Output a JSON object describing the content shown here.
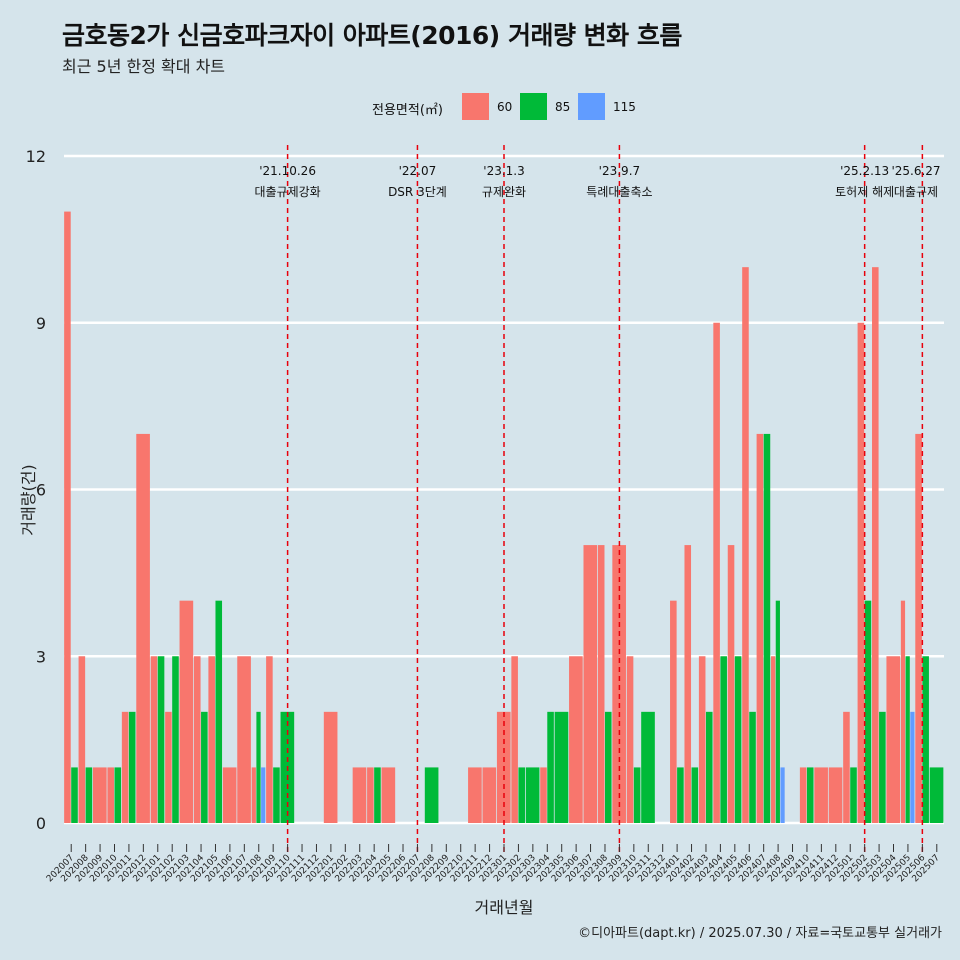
{
  "title": "금호동2가 신금호파크자이 아파트(2016) 거래량 변화 흐름",
  "subtitle": "최근 5년 한정 확대 차트",
  "caption": "©디아파트(dapt.kr) / 2025.07.30 / 자료=국토교통부 실거래가",
  "colors": {
    "60": "#F8766D",
    "85": "#00BA38",
    "115": "#619CFF",
    "background": "#d5e4eb",
    "vline": "#e8000b"
  },
  "chart_data": {
    "type": "bar",
    "xlabel": "거래년월",
    "ylabel": "거래량(건)",
    "ylim": [
      0,
      12
    ],
    "yticks": [
      0,
      3,
      6,
      9,
      12
    ],
    "legend": {
      "title": "전용면적(㎡)",
      "position": "top",
      "entries": [
        "60",
        "85",
        "115"
      ]
    },
    "categories": [
      "202007",
      "202008",
      "202009",
      "202010",
      "202011",
      "202012",
      "202101",
      "202102",
      "202103",
      "202104",
      "202105",
      "202106",
      "202107",
      "202108",
      "202109",
      "202110",
      "202111",
      "202112",
      "202201",
      "202202",
      "202203",
      "202204",
      "202205",
      "202206",
      "202207",
      "202208",
      "202209",
      "202210",
      "202211",
      "202212",
      "202301",
      "202302",
      "202303",
      "202304",
      "202305",
      "202306",
      "202307",
      "202308",
      "202309",
      "202310",
      "202311",
      "202312",
      "202401",
      "202402",
      "202403",
      "202404",
      "202405",
      "202406",
      "202407",
      "202408",
      "202409",
      "202410",
      "202411",
      "202412",
      "202501",
      "202502",
      "202503",
      "202504",
      "202505",
      "202506",
      "202507"
    ],
    "series": [
      {
        "name": "60",
        "values": [
          11,
          3,
          1,
          1,
          2,
          7,
          3,
          2,
          4,
          3,
          3,
          1,
          3,
          1,
          3,
          0,
          0,
          0,
          2,
          0,
          1,
          1,
          1,
          0,
          0,
          0,
          0,
          0,
          1,
          1,
          2,
          3,
          0,
          1,
          0,
          3,
          5,
          5,
          5,
          3,
          0,
          0,
          4,
          5,
          3,
          9,
          5,
          10,
          7,
          3,
          0,
          1,
          1,
          1,
          2,
          9,
          10,
          3,
          4,
          7,
          0
        ]
      },
      {
        "name": "85",
        "values": [
          1,
          1,
          0,
          1,
          2,
          0,
          3,
          3,
          0,
          2,
          4,
          0,
          0,
          2,
          1,
          2,
          0,
          0,
          0,
          0,
          0,
          1,
          0,
          0,
          0,
          1,
          0,
          0,
          0,
          0,
          0,
          1,
          1,
          2,
          2,
          0,
          0,
          2,
          0,
          1,
          2,
          0,
          1,
          1,
          2,
          3,
          3,
          2,
          7,
          4,
          0,
          1,
          0,
          0,
          1,
          4,
          2,
          0,
          3,
          3,
          1
        ]
      },
      {
        "name": "115",
        "values": [
          0,
          0,
          0,
          0,
          0,
          0,
          0,
          0,
          0,
          0,
          0,
          0,
          0,
          1,
          0,
          0,
          0,
          0,
          0,
          0,
          0,
          0,
          0,
          0,
          0,
          0,
          0,
          0,
          0,
          0,
          0,
          0,
          0,
          0,
          0,
          0,
          0,
          0,
          0,
          0,
          0,
          0,
          0,
          0,
          0,
          0,
          0,
          0,
          0,
          1,
          0,
          0,
          0,
          0,
          0,
          0,
          0,
          0,
          2,
          0,
          0
        ]
      }
    ],
    "annotations": [
      {
        "x": "202110",
        "date": "'21.10.26",
        "label": "대출규제강화"
      },
      {
        "x": "202207",
        "date": "'22.07",
        "label": "DSR 3단계"
      },
      {
        "x": "202301",
        "date": "'23.1.3",
        "label": "규제완화"
      },
      {
        "x": "202309",
        "date": "'23.9.7",
        "label": "특례대출축소"
      },
      {
        "x": "202502",
        "date": "'25.2.13",
        "label": "토허제 해제"
      },
      {
        "x": "202506",
        "date": "'25.6.27",
        "label": "대출규제"
      }
    ]
  }
}
